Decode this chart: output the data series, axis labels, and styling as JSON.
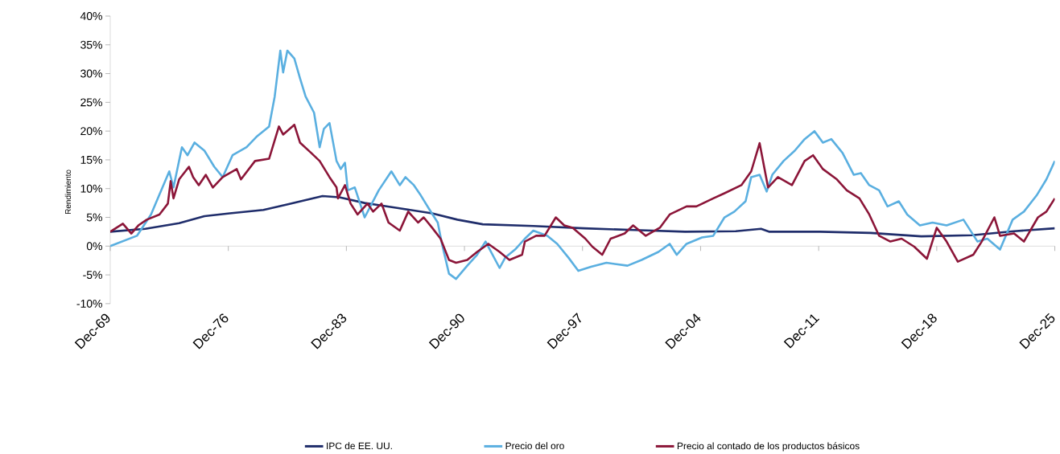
{
  "chart_data": {
    "type": "line",
    "ylabel": "Rendimiento",
    "xlim": [
      "1969-12",
      "2025-12"
    ],
    "xticks": [
      {
        "value": "1969-12",
        "label": "Dec-69"
      },
      {
        "value": "1976-12",
        "label": "Dec-76"
      },
      {
        "value": "1983-12",
        "label": "Dec-83"
      },
      {
        "value": "1990-12",
        "label": "Dec-90"
      },
      {
        "value": "1997-12",
        "label": "Dec-97"
      },
      {
        "value": "2004-12",
        "label": "Dec-04"
      },
      {
        "value": "2011-12",
        "label": "Dec-11"
      },
      {
        "value": "2018-12",
        "label": "Dec-18"
      },
      {
        "value": "2025-12",
        "label": "Dec-25"
      }
    ],
    "ylim": [
      -10,
      40
    ],
    "yticks": [
      {
        "value": -10,
        "label": "-10%"
      },
      {
        "value": -5,
        "label": "-5%"
      },
      {
        "value": 0,
        "label": "0%"
      },
      {
        "value": 5,
        "label": "5%"
      },
      {
        "value": 10,
        "label": "10%"
      },
      {
        "value": 15,
        "label": "15%"
      },
      {
        "value": 20,
        "label": "20%"
      },
      {
        "value": 25,
        "label": "25%"
      },
      {
        "value": 30,
        "label": "30%"
      },
      {
        "value": 35,
        "label": "35%"
      },
      {
        "value": 40,
        "label": "40%"
      }
    ],
    "legend": "bottom",
    "marker": "none",
    "line_style": "solid",
    "series": [
      {
        "name": "IPC de EE. UU.",
        "color": "#1f2d6b",
        "x": [
          "1969-12",
          "1972-01",
          "1974-01",
          "1975-07",
          "1977-01",
          "1979-01",
          "1980-07",
          "1982-07",
          "1983-07",
          "1985-01",
          "1987-01",
          "1989-01",
          "1990-07",
          "1992-01",
          "1995-01",
          "1998-01",
          "2001-01",
          "2004-01",
          "2007-01",
          "2008-07",
          "2009-01",
          "2012-01",
          "2015-01",
          "2018-01",
          "2021-01",
          "2023-07",
          "2025-12"
        ],
        "values": [
          2.5,
          3.0,
          4.0,
          5.2,
          5.7,
          6.3,
          7.3,
          8.7,
          8.5,
          7.5,
          6.6,
          5.7,
          4.6,
          3.8,
          3.5,
          3.1,
          2.8,
          2.5,
          2.6,
          3.0,
          2.5,
          2.5,
          2.3,
          1.7,
          1.9,
          2.6,
          3.1
        ]
      },
      {
        "name": "Precio del oro",
        "color": "#5aafe0",
        "x": [
          "1969-12",
          "1971-07",
          "1972-05",
          "1973-06",
          "1973-09",
          "1974-03",
          "1974-07",
          "1974-12",
          "1975-07",
          "1976-02",
          "1976-08",
          "1977-03",
          "1978-01",
          "1978-08",
          "1979-05",
          "1979-09",
          "1980-01",
          "1980-03",
          "1980-06",
          "1980-11",
          "1981-03",
          "1981-07",
          "1982-01",
          "1982-05",
          "1982-08",
          "1982-12",
          "1983-05",
          "1983-08",
          "1983-11",
          "1984-01",
          "1984-06",
          "1985-01",
          "1985-07",
          "1985-11",
          "1986-08",
          "1987-02",
          "1987-06",
          "1987-12",
          "1988-05",
          "1988-11",
          "1989-05",
          "1989-08",
          "1990-01",
          "1990-06",
          "1991-02",
          "1991-09",
          "1992-03",
          "1993-01",
          "1993-05",
          "1993-12",
          "1994-07",
          "1995-01",
          "1995-11",
          "1996-06",
          "1997-02",
          "1997-09",
          "1998-06",
          "1999-05",
          "2000-08",
          "2001-06",
          "2002-06",
          "2003-02",
          "2003-07",
          "2004-02",
          "2005-01",
          "2005-09",
          "2006-05",
          "2006-12",
          "2007-08",
          "2007-12",
          "2008-06",
          "2008-11",
          "2009-03",
          "2009-11",
          "2010-07",
          "2011-02",
          "2011-09",
          "2012-03",
          "2012-09",
          "2013-05",
          "2014-01",
          "2014-06",
          "2014-12",
          "2015-07",
          "2016-01",
          "2016-09",
          "2017-03",
          "2017-12",
          "2018-09",
          "2019-07",
          "2020-07",
          "2021-05",
          "2021-12",
          "2022-09",
          "2023-06",
          "2024-02",
          "2024-11",
          "2025-06",
          "2025-12"
        ],
        "values": [
          0,
          1.8,
          5.5,
          13,
          10.2,
          17.2,
          15.8,
          18,
          16.6,
          13.8,
          12,
          15.8,
          17.2,
          19,
          20.8,
          26,
          34,
          30.2,
          34,
          32.6,
          29.2,
          26,
          23.2,
          17.2,
          20.4,
          21.4,
          14.8,
          13.4,
          14.5,
          9.7,
          10.2,
          5,
          7.8,
          9.7,
          13,
          10.6,
          12,
          10.6,
          8.8,
          6.4,
          4.1,
          0.4,
          -4.8,
          -5.7,
          -3.4,
          -1.5,
          0.8,
          -3.8,
          -2,
          -0.6,
          1.3,
          2.7,
          1.8,
          0.4,
          -2,
          -4.3,
          -3.6,
          -2.9,
          -3.4,
          -2.4,
          -1,
          0.4,
          -1.5,
          0.4,
          1.5,
          1.8,
          5,
          6,
          7.8,
          12,
          12.4,
          9.5,
          12.4,
          14.8,
          16.6,
          18.6,
          20,
          18,
          18.6,
          16.2,
          12.4,
          12.7,
          10.6,
          9.7,
          6.9,
          7.8,
          5.5,
          3.6,
          4.1,
          3.6,
          4.6,
          0.8,
          1.3,
          -0.6,
          4.6,
          6,
          8.8,
          11.6,
          14.8
        ]
      },
      {
        "name": "Precio al contado de los productos básicos",
        "color": "#8b1538",
        "x": [
          "1969-12",
          "1970-09",
          "1971-03",
          "1971-08",
          "1972-02",
          "1972-11",
          "1973-05",
          "1973-07",
          "1973-09",
          "1974-01",
          "1974-08",
          "1974-11",
          "1975-03",
          "1975-08",
          "1976-01",
          "1976-08",
          "1977-06",
          "1977-09",
          "1978-07",
          "1979-05",
          "1979-12",
          "1980-03",
          "1980-11",
          "1981-03",
          "1981-11",
          "1982-05",
          "1982-12",
          "1983-05",
          "1983-06",
          "1983-11",
          "1984-03",
          "1984-08",
          "1985-03",
          "1985-07",
          "1986-01",
          "1986-06",
          "1987-02",
          "1987-08",
          "1988-03",
          "1988-07",
          "1989-01",
          "1989-07",
          "1990-01",
          "1990-06",
          "1991-02",
          "1991-09",
          "1992-05",
          "1993-01",
          "1993-08",
          "1994-05",
          "1994-07",
          "1995-03",
          "1995-09",
          "1996-05",
          "1996-11",
          "1997-05",
          "1998-02",
          "1998-07",
          "1999-02",
          "1999-08",
          "2000-06",
          "2000-12",
          "2001-09",
          "2002-07",
          "2003-02",
          "2004-02",
          "2004-09",
          "2005-09",
          "2006-05",
          "2007-05",
          "2007-12",
          "2008-06",
          "2008-12",
          "2009-07",
          "2010-05",
          "2011-02",
          "2011-08",
          "2012-03",
          "2013-01",
          "2013-08",
          "2014-05",
          "2014-12",
          "2015-07",
          "2016-03",
          "2016-11",
          "2017-08",
          "2018-05",
          "2018-12",
          "2019-07",
          "2020-03",
          "2021-02",
          "2021-08",
          "2022-05",
          "2022-09",
          "2023-07",
          "2024-02",
          "2024-12",
          "2025-06",
          "2025-12"
        ],
        "values": [
          2.5,
          3.9,
          2.2,
          3.6,
          4.6,
          5.5,
          7.4,
          11.3,
          8.3,
          11.6,
          13.8,
          12,
          10.6,
          12.4,
          10.2,
          12,
          13.4,
          11.6,
          14.8,
          15.2,
          20.8,
          19.4,
          21.1,
          18,
          16.2,
          14.8,
          12,
          10.2,
          8.3,
          10.6,
          7.4,
          5.5,
          7.4,
          6,
          7.4,
          4.1,
          2.7,
          6,
          4.1,
          5,
          3.2,
          1.3,
          -2.4,
          -2.9,
          -2.4,
          -1,
          0.4,
          -1,
          -2.4,
          -1.5,
          0.8,
          1.8,
          1.8,
          5,
          3.6,
          3.2,
          1.3,
          -0.1,
          -1.5,
          1.3,
          2.2,
          3.6,
          1.8,
          3.2,
          5.5,
          6.9,
          6.9,
          8.3,
          9.2,
          10.6,
          13,
          17.9,
          10.2,
          12,
          10.6,
          14.8,
          15.8,
          13.4,
          11.6,
          9.7,
          8.3,
          5.5,
          1.8,
          0.8,
          1.3,
          -0.1,
          -2.2,
          3.2,
          0.8,
          -2.7,
          -1.5,
          0.8,
          5,
          1.8,
          2.2,
          0.8,
          5,
          6,
          8.3
        ]
      }
    ]
  }
}
